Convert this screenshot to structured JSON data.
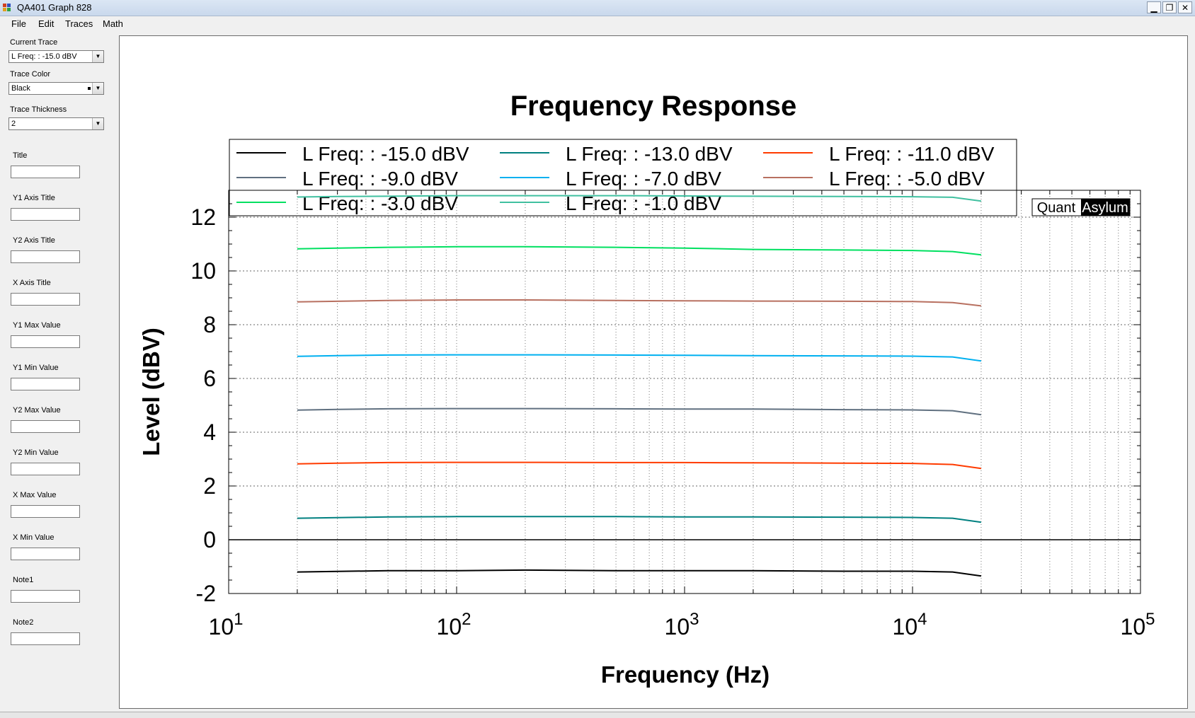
{
  "window": {
    "title": "QA401 Graph 828",
    "minimize_glyph": "▁",
    "restore_glyph": "❐",
    "close_glyph": "✕",
    "icon": "qa401-app-icon"
  },
  "menu": [
    "File",
    "Edit",
    "Traces",
    "Math"
  ],
  "sidebar": {
    "current_trace_label": "Current Trace",
    "current_trace_value": "L Freq: : -15.0 dBV",
    "trace_color_label": "Trace Color",
    "trace_color_value": "Black",
    "trace_thickness_label": "Trace Thickness",
    "trace_thickness_value": "2",
    "dropdown_glyph": "▼",
    "fields": [
      {
        "label": "Title",
        "value": ""
      },
      {
        "label": "Y1 Axis Title",
        "value": ""
      },
      {
        "label": "Y2 Axis Title",
        "value": ""
      },
      {
        "label": "X Axis Title",
        "value": ""
      },
      {
        "label": "Y1 Max Value",
        "value": ""
      },
      {
        "label": "Y1 Min Value",
        "value": ""
      },
      {
        "label": "Y2 Max Value",
        "value": ""
      },
      {
        "label": "Y2 Min Value",
        "value": ""
      },
      {
        "label": "X Max Value",
        "value": ""
      },
      {
        "label": "X Min Value",
        "value": ""
      },
      {
        "label": "Note1",
        "value": ""
      },
      {
        "label": "Note2",
        "value": ""
      }
    ]
  },
  "chart_data": {
    "type": "line",
    "title": "Frequency Response",
    "xlabel": "Frequency (Hz)",
    "ylabel": "Level (dBV)",
    "x_scale": "log",
    "xlim": [
      10,
      100000
    ],
    "ylim": [
      -2,
      13
    ],
    "x_ticks": [
      {
        "base": "10",
        "exp": "1"
      },
      {
        "base": "10",
        "exp": "2"
      },
      {
        "base": "10",
        "exp": "3"
      },
      {
        "base": "10",
        "exp": "4"
      },
      {
        "base": "10",
        "exp": "5"
      }
    ],
    "y_ticks": [
      "-2",
      "0",
      "2",
      "4",
      "6",
      "8",
      "10",
      "12"
    ],
    "grid": true,
    "legend_position": "top",
    "watermark": {
      "left": "Quant",
      "right": "Asylum"
    },
    "x": [
      20,
      30,
      50,
      100,
      200,
      500,
      1000,
      2000,
      5000,
      10000,
      15000,
      20000
    ],
    "series": [
      {
        "name": "L Freq: : -15.0 dBV",
        "color": "#000000",
        "values": [
          -1.2,
          -1.18,
          -1.15,
          -1.15,
          -1.13,
          -1.15,
          -1.15,
          -1.15,
          -1.17,
          -1.17,
          -1.2,
          -1.35
        ]
      },
      {
        "name": "L Freq: : -13.0 dBV",
        "color": "#008080",
        "values": [
          0.8,
          0.82,
          0.85,
          0.86,
          0.86,
          0.86,
          0.85,
          0.85,
          0.84,
          0.83,
          0.8,
          0.65
        ]
      },
      {
        "name": "L Freq: : -11.0 dBV",
        "color": "#ff3b00",
        "values": [
          2.82,
          2.85,
          2.87,
          2.88,
          2.88,
          2.87,
          2.87,
          2.86,
          2.85,
          2.84,
          2.8,
          2.65
        ]
      },
      {
        "name": "L Freq: : -9.0 dBV",
        "color": "#607080",
        "values": [
          4.82,
          4.85,
          4.87,
          4.88,
          4.88,
          4.87,
          4.86,
          4.86,
          4.84,
          4.83,
          4.8,
          4.65
        ]
      },
      {
        "name": "L Freq: : -7.0 dBV",
        "color": "#00b0f0",
        "values": [
          6.82,
          6.85,
          6.87,
          6.88,
          6.88,
          6.87,
          6.86,
          6.85,
          6.84,
          6.83,
          6.8,
          6.65
        ]
      },
      {
        "name": "L Freq: : -5.0 dBV",
        "color": "#b87060",
        "values": [
          8.85,
          8.87,
          8.9,
          8.92,
          8.92,
          8.9,
          8.89,
          8.88,
          8.87,
          8.86,
          8.82,
          8.7
        ]
      },
      {
        "name": "L Freq: : -3.0 dBV",
        "color": "#00e060",
        "values": [
          10.82,
          10.85,
          10.88,
          10.9,
          10.9,
          10.88,
          10.85,
          10.8,
          10.78,
          10.76,
          10.72,
          10.6
        ]
      },
      {
        "name": "L Freq: : -1.0 dBV",
        "color": "#40c0a0",
        "values": [
          12.75,
          12.77,
          12.78,
          12.8,
          12.8,
          12.8,
          12.79,
          12.78,
          12.77,
          12.76,
          12.74,
          12.6
        ]
      }
    ]
  }
}
